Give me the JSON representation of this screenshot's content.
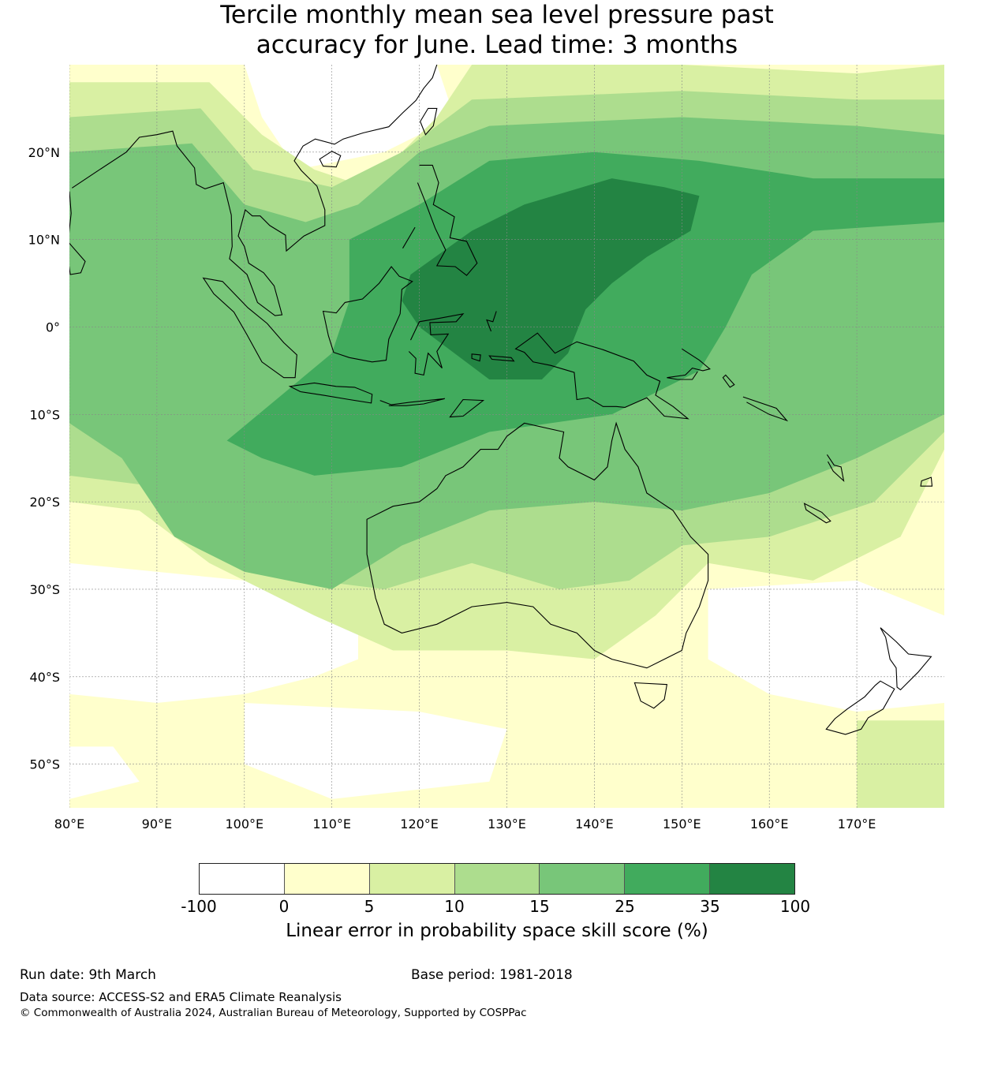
{
  "title_line1": "Tercile monthly mean sea level pressure past",
  "title_line2": "accuracy for June. Lead time: 3 months",
  "map": {
    "lon_range": [
      80,
      180
    ],
    "lat_range": [
      -55,
      30
    ],
    "lat_ticks": [
      {
        "value": 20,
        "label": "20°N"
      },
      {
        "value": 10,
        "label": "10°N"
      },
      {
        "value": 0,
        "label": "0°"
      },
      {
        "value": -10,
        "label": "10°S"
      },
      {
        "value": -20,
        "label": "20°S"
      },
      {
        "value": -30,
        "label": "30°S"
      },
      {
        "value": -40,
        "label": "40°S"
      },
      {
        "value": -50,
        "label": "50°S"
      }
    ],
    "lon_ticks": [
      {
        "value": 80,
        "label": "80°E"
      },
      {
        "value": 90,
        "label": "90°E"
      },
      {
        "value": 100,
        "label": "100°E"
      },
      {
        "value": 110,
        "label": "110°E"
      },
      {
        "value": 120,
        "label": "120°E"
      },
      {
        "value": 130,
        "label": "130°E"
      },
      {
        "value": 140,
        "label": "140°E"
      },
      {
        "value": 150,
        "label": "150°E"
      },
      {
        "value": 160,
        "label": "160°E"
      },
      {
        "value": 170,
        "label": "170°E"
      }
    ],
    "gridlines": true
  },
  "colorbar": {
    "colors": [
      "#ffffff",
      "#ffffcc",
      "#d9f0a3",
      "#addd8e",
      "#78c679",
      "#41ab5d",
      "#238443"
    ],
    "ticks": [
      "-100",
      "0",
      "5",
      "10",
      "15",
      "25",
      "35",
      "100"
    ],
    "label": "Linear error in probability space skill score (%)"
  },
  "footer": {
    "run_date": "Run date: 9th March",
    "base_period": "Base period: 1981-2018",
    "data_source": "Data source: ACCESS-S2 and ERA5 Climate Reanalysis",
    "copyright": "© Commonwealth of Australia 2024, Australian Bureau of Meteorology, Supported by COSPPac"
  }
}
